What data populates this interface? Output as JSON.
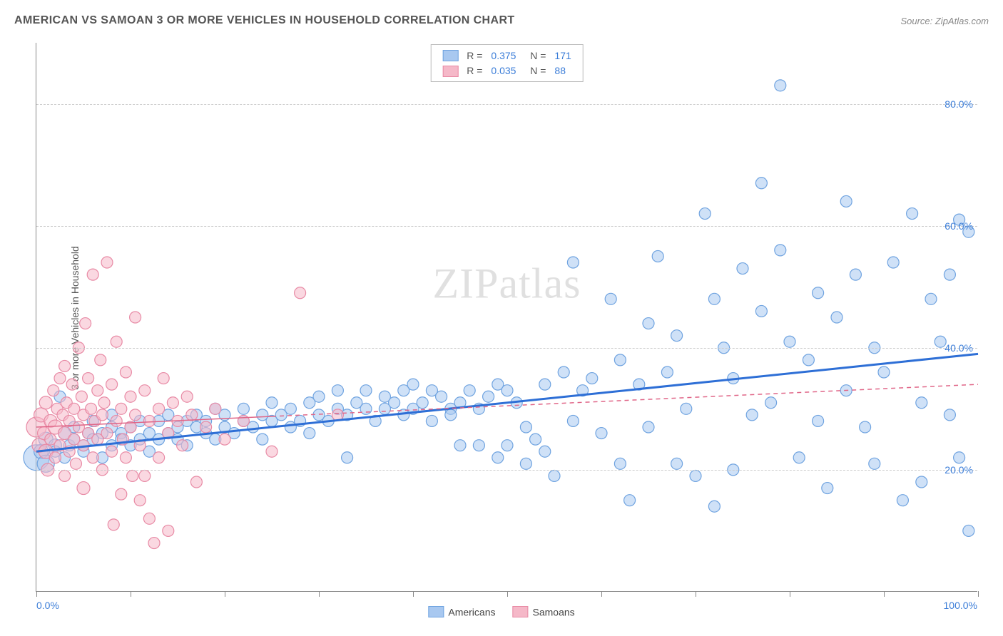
{
  "title": "AMERICAN VS SAMOAN 3 OR MORE VEHICLES IN HOUSEHOLD CORRELATION CHART",
  "source": "Source: ZipAtlas.com",
  "ylabel": "3 or more Vehicles in Household",
  "watermark": "ZIPatlas",
  "chart": {
    "type": "scatter",
    "xlim": [
      0,
      100
    ],
    "ylim": [
      0,
      90
    ],
    "background_color": "#ffffff",
    "grid_color": "#cccccc",
    "grid_dash": "4,4",
    "axis_color": "#888888",
    "xtick_positions": [
      0,
      10,
      20,
      30,
      40,
      50,
      60,
      70,
      80,
      90,
      100
    ],
    "xtick_labels": {
      "0": "0.0%",
      "100": "100.0%"
    },
    "xtick_label_color": "#3b7dd8",
    "ytick_positions": [
      20,
      40,
      60,
      80
    ],
    "ytick_labels": {
      "20": "20.0%",
      "40": "40.0%",
      "60": "60.0%",
      "80": "80.0%"
    },
    "ytick_label_color": "#3b7dd8",
    "series": [
      {
        "name": "Americans",
        "color_fill": "#a8c8f0",
        "color_stroke": "#6fa3e0",
        "fill_opacity": 0.55,
        "marker_radius": 8,
        "regression": {
          "y_at_x0": 23,
          "y_at_x100": 39,
          "color": "#2e6fd6",
          "width": 3,
          "dash": "none"
        },
        "R": "0.375",
        "N": "171",
        "points": [
          [
            0,
            22,
            18
          ],
          [
            0.5,
            23,
            10
          ],
          [
            1,
            25,
            10
          ],
          [
            1,
            21,
            12
          ],
          [
            2,
            24,
            9
          ],
          [
            2,
            23,
            8
          ],
          [
            2.5,
            32,
            8
          ],
          [
            3,
            26,
            9
          ],
          [
            3,
            22,
            8
          ],
          [
            3.5,
            24,
            8
          ],
          [
            4,
            25,
            8
          ],
          [
            4,
            27,
            8
          ],
          [
            5,
            23,
            8
          ],
          [
            5,
            24,
            8
          ],
          [
            5.5,
            26,
            8
          ],
          [
            6,
            25,
            8
          ],
          [
            6,
            28,
            8
          ],
          [
            7,
            26,
            8
          ],
          [
            7,
            22,
            8
          ],
          [
            8,
            27,
            8
          ],
          [
            8,
            24,
            8
          ],
          [
            8,
            29,
            8
          ],
          [
            9,
            26,
            8
          ],
          [
            9,
            25,
            8
          ],
          [
            10,
            24,
            8
          ],
          [
            10,
            27,
            8
          ],
          [
            11,
            25,
            8
          ],
          [
            11,
            28,
            8
          ],
          [
            12,
            26,
            8
          ],
          [
            12,
            23,
            8
          ],
          [
            13,
            28,
            8
          ],
          [
            13,
            25,
            8
          ],
          [
            14,
            29,
            8
          ],
          [
            14,
            26,
            8
          ],
          [
            15,
            27,
            8
          ],
          [
            15,
            25,
            8
          ],
          [
            16,
            28,
            8
          ],
          [
            16,
            24,
            8
          ],
          [
            17,
            27,
            8
          ],
          [
            17,
            29,
            8
          ],
          [
            18,
            26,
            8
          ],
          [
            18,
            28,
            8
          ],
          [
            19,
            30,
            8
          ],
          [
            19,
            25,
            8
          ],
          [
            20,
            27,
            8
          ],
          [
            20,
            29,
            8
          ],
          [
            21,
            26,
            8
          ],
          [
            22,
            28,
            8
          ],
          [
            22,
            30,
            8
          ],
          [
            23,
            27,
            8
          ],
          [
            24,
            29,
            8
          ],
          [
            24,
            25,
            8
          ],
          [
            25,
            28,
            8
          ],
          [
            25,
            31,
            8
          ],
          [
            26,
            29,
            8
          ],
          [
            27,
            30,
            8
          ],
          [
            27,
            27,
            8
          ],
          [
            28,
            28,
            8
          ],
          [
            29,
            31,
            8
          ],
          [
            29,
            26,
            8
          ],
          [
            30,
            29,
            8
          ],
          [
            30,
            32,
            8
          ],
          [
            31,
            28,
            8
          ],
          [
            32,
            30,
            8
          ],
          [
            32,
            33,
            8
          ],
          [
            33,
            29,
            8
          ],
          [
            33,
            22,
            8
          ],
          [
            34,
            31,
            8
          ],
          [
            35,
            30,
            8
          ],
          [
            35,
            33,
            8
          ],
          [
            36,
            28,
            8
          ],
          [
            37,
            32,
            8
          ],
          [
            37,
            30,
            8
          ],
          [
            38,
            31,
            8
          ],
          [
            39,
            33,
            8
          ],
          [
            39,
            29,
            8
          ],
          [
            40,
            30,
            8
          ],
          [
            40,
            34,
            8
          ],
          [
            41,
            31,
            8
          ],
          [
            42,
            28,
            8
          ],
          [
            42,
            33,
            8
          ],
          [
            43,
            32,
            8
          ],
          [
            44,
            30,
            8
          ],
          [
            44,
            29,
            8
          ],
          [
            45,
            24,
            8
          ],
          [
            45,
            31,
            8
          ],
          [
            46,
            33,
            8
          ],
          [
            47,
            30,
            8
          ],
          [
            47,
            24,
            8
          ],
          [
            48,
            32,
            8
          ],
          [
            49,
            34,
            8
          ],
          [
            49,
            22,
            8
          ],
          [
            50,
            33,
            8
          ],
          [
            50,
            24,
            8
          ],
          [
            51,
            31,
            8
          ],
          [
            52,
            27,
            8
          ],
          [
            52,
            21,
            8
          ],
          [
            53,
            25,
            8
          ],
          [
            54,
            34,
            8
          ],
          [
            54,
            23,
            8
          ],
          [
            55,
            19,
            8
          ],
          [
            56,
            36,
            8
          ],
          [
            57,
            54,
            8
          ],
          [
            57,
            28,
            8
          ],
          [
            58,
            33,
            8
          ],
          [
            59,
            35,
            8
          ],
          [
            60,
            26,
            8
          ],
          [
            61,
            48,
            8
          ],
          [
            62,
            21,
            8
          ],
          [
            62,
            38,
            8
          ],
          [
            63,
            15,
            8
          ],
          [
            64,
            34,
            8
          ],
          [
            65,
            44,
            8
          ],
          [
            65,
            27,
            8
          ],
          [
            66,
            55,
            8
          ],
          [
            67,
            36,
            8
          ],
          [
            68,
            42,
            8
          ],
          [
            68,
            21,
            8
          ],
          [
            69,
            30,
            8
          ],
          [
            70,
            19,
            8
          ],
          [
            71,
            62,
            8
          ],
          [
            72,
            48,
            8
          ],
          [
            72,
            14,
            8
          ],
          [
            73,
            40,
            8
          ],
          [
            74,
            35,
            8
          ],
          [
            74,
            20,
            8
          ],
          [
            75,
            53,
            8
          ],
          [
            76,
            29,
            8
          ],
          [
            77,
            67,
            8
          ],
          [
            77,
            46,
            8
          ],
          [
            78,
            31,
            8
          ],
          [
            79,
            83,
            8
          ],
          [
            79,
            56,
            8
          ],
          [
            80,
            41,
            8
          ],
          [
            81,
            22,
            8
          ],
          [
            82,
            38,
            8
          ],
          [
            83,
            49,
            8
          ],
          [
            83,
            28,
            8
          ],
          [
            84,
            17,
            8
          ],
          [
            85,
            45,
            8
          ],
          [
            86,
            64,
            8
          ],
          [
            86,
            33,
            8
          ],
          [
            87,
            52,
            8
          ],
          [
            88,
            27,
            8
          ],
          [
            89,
            40,
            8
          ],
          [
            89,
            21,
            8
          ],
          [
            90,
            36,
            8
          ],
          [
            91,
            54,
            8
          ],
          [
            92,
            15,
            8
          ],
          [
            93,
            62,
            8
          ],
          [
            94,
            31,
            8
          ],
          [
            94,
            18,
            8
          ],
          [
            95,
            48,
            8
          ],
          [
            96,
            41,
            8
          ],
          [
            97,
            29,
            8
          ],
          [
            97,
            52,
            8
          ],
          [
            98,
            61,
            8
          ],
          [
            98,
            22,
            8
          ],
          [
            99,
            10,
            8
          ],
          [
            99,
            59,
            8
          ]
        ]
      },
      {
        "name": "Samoans",
        "color_fill": "#f5b8c8",
        "color_stroke": "#e88aa5",
        "fill_opacity": 0.55,
        "marker_radius": 8,
        "regression": {
          "y_at_x0": 27,
          "y_at_x100": 34,
          "color": "#e06688",
          "width": 1.5,
          "dash": "6,5",
          "solid_until_x": 25
        },
        "R": "0.035",
        "N": "88",
        "points": [
          [
            0,
            27,
            14
          ],
          [
            0.3,
            24,
            10
          ],
          [
            0.5,
            29,
            10
          ],
          [
            0.8,
            26,
            9
          ],
          [
            1,
            23,
            10
          ],
          [
            1,
            31,
            9
          ],
          [
            1.2,
            20,
            9
          ],
          [
            1.5,
            28,
            9
          ],
          [
            1.5,
            25,
            8
          ],
          [
            1.8,
            33,
            8
          ],
          [
            2,
            27,
            10
          ],
          [
            2,
            22,
            8
          ],
          [
            2.2,
            30,
            8
          ],
          [
            2.5,
            35,
            8
          ],
          [
            2.5,
            24,
            8
          ],
          [
            2.8,
            29,
            8
          ],
          [
            3,
            26,
            9
          ],
          [
            3,
            19,
            8
          ],
          [
            3,
            37,
            8
          ],
          [
            3.2,
            31,
            8
          ],
          [
            3.5,
            23,
            8
          ],
          [
            3.5,
            28,
            8
          ],
          [
            3.8,
            34,
            8
          ],
          [
            4,
            25,
            8
          ],
          [
            4,
            30,
            8
          ],
          [
            4.2,
            21,
            8
          ],
          [
            4.5,
            27,
            8
          ],
          [
            4.5,
            40,
            8
          ],
          [
            4.8,
            32,
            8
          ],
          [
            5,
            17,
            9
          ],
          [
            5,
            29,
            8
          ],
          [
            5,
            24,
            8
          ],
          [
            5.2,
            44,
            8
          ],
          [
            5.5,
            26,
            8
          ],
          [
            5.5,
            35,
            8
          ],
          [
            5.8,
            30,
            8
          ],
          [
            6,
            22,
            8
          ],
          [
            6,
            52,
            8
          ],
          [
            6.2,
            28,
            8
          ],
          [
            6.5,
            33,
            8
          ],
          [
            6.5,
            25,
            8
          ],
          [
            6.8,
            38,
            8
          ],
          [
            7,
            29,
            8
          ],
          [
            7,
            20,
            8
          ],
          [
            7.2,
            31,
            8
          ],
          [
            7.5,
            54,
            8
          ],
          [
            7.5,
            26,
            8
          ],
          [
            8,
            23,
            8
          ],
          [
            8,
            34,
            8
          ],
          [
            8.2,
            11,
            8
          ],
          [
            8.5,
            28,
            8
          ],
          [
            8.5,
            41,
            8
          ],
          [
            9,
            30,
            8
          ],
          [
            9,
            16,
            8
          ],
          [
            9.2,
            25,
            8
          ],
          [
            9.5,
            36,
            8
          ],
          [
            9.5,
            22,
            8
          ],
          [
            10,
            32,
            8
          ],
          [
            10,
            27,
            8
          ],
          [
            10.2,
            19,
            8
          ],
          [
            10.5,
            45,
            8
          ],
          [
            10.5,
            29,
            8
          ],
          [
            11,
            24,
            8
          ],
          [
            11,
            15,
            8
          ],
          [
            11.5,
            33,
            8
          ],
          [
            11.5,
            19,
            8
          ],
          [
            12,
            28,
            8
          ],
          [
            12,
            12,
            8
          ],
          [
            12.5,
            8,
            8
          ],
          [
            13,
            30,
            8
          ],
          [
            13,
            22,
            8
          ],
          [
            13.5,
            35,
            8
          ],
          [
            14,
            26,
            8
          ],
          [
            14,
            10,
            8
          ],
          [
            14.5,
            31,
            8
          ],
          [
            15,
            28,
            8
          ],
          [
            15.5,
            24,
            8
          ],
          [
            16,
            32,
            8
          ],
          [
            16.5,
            29,
            8
          ],
          [
            17,
            18,
            8
          ],
          [
            18,
            27,
            8
          ],
          [
            19,
            30,
            8
          ],
          [
            20,
            25,
            8
          ],
          [
            22,
            28,
            8
          ],
          [
            25,
            23,
            8
          ],
          [
            28,
            49,
            8
          ],
          [
            32,
            29,
            8
          ]
        ]
      }
    ],
    "legend_top": {
      "label_R": "R =",
      "label_N": "N =",
      "value_color": "#3b7dd8",
      "label_color": "#555"
    },
    "legend_bottom": {
      "items": [
        "Americans",
        "Samoans"
      ]
    }
  }
}
